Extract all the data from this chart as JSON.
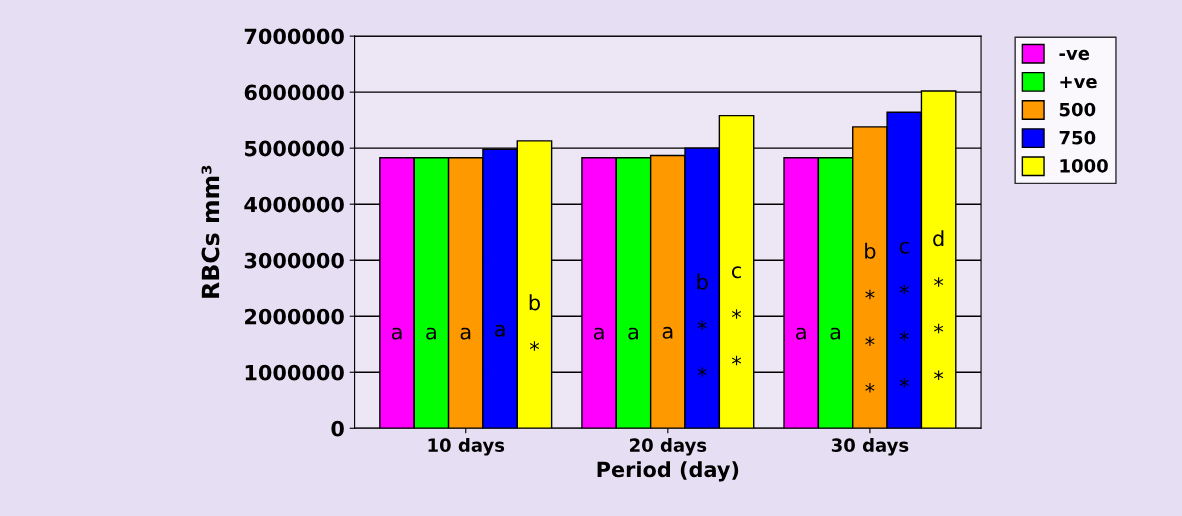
{
  "chart_data": {
    "type": "bar",
    "xlabel": "Period (day)",
    "ylabel": "RBCs mm³",
    "categories": [
      "10 days",
      "20 days",
      "30 days"
    ],
    "series": [
      {
        "name": "-ve",
        "color": "#ff00ff",
        "values": [
          4830000,
          4830000,
          4830000
        ]
      },
      {
        "name": "+ve",
        "color": "#00ff00",
        "values": [
          4830000,
          4830000,
          4830000
        ]
      },
      {
        "name": "500",
        "color": "#ff9900",
        "values": [
          4830000,
          4870000,
          5380000
        ]
      },
      {
        "name": "750",
        "color": "#0000ff",
        "values": [
          4980000,
          5000000,
          5640000
        ]
      },
      {
        "name": "1000",
        "color": "#ffff00",
        "values": [
          5130000,
          5580000,
          6020000
        ]
      }
    ],
    "annotations": [
      "a",
      "a",
      "a",
      "a",
      "b\n\n*",
      "a",
      "a",
      "a",
      "b\n\n*\n\n*",
      "c\n\n*\n\n*",
      "a",
      "a",
      "b\n\n*\n\n*\n\n*",
      "c\n\n*\n\n*\n\n*",
      "d\n\n*\n\n*\n\n*"
    ],
    "ylim": [
      0,
      7000000
    ],
    "yticks": [
      0,
      1000000,
      2000000,
      3000000,
      4000000,
      5000000,
      6000000,
      7000000
    ],
    "grid": "y",
    "legend": "right"
  }
}
